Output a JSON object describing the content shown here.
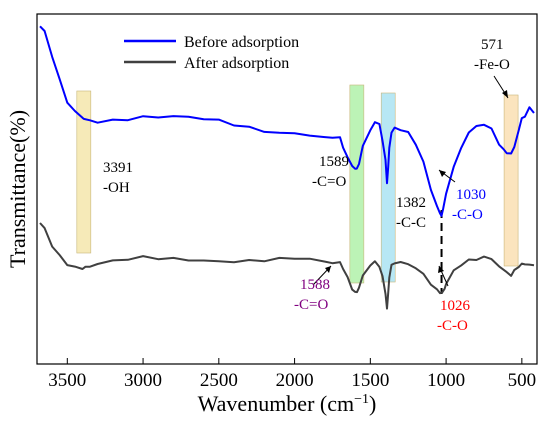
{
  "chart_data": {
    "type": "line",
    "xlabel": "Wavenumber (cm",
    "xlabel_sup": "−1",
    "xlabel_close": ")",
    "ylabel": "Transmittance(%)",
    "xlim": [
      3700,
      400
    ],
    "x_reversed": true,
    "x_ticks": [
      3500,
      3000,
      2500,
      2000,
      1500,
      1000,
      500
    ],
    "y_ticks_shown": false,
    "grid": false,
    "legend_position": "top-left",
    "series": [
      {
        "name": "Before adsorption",
        "color": "#0000ff",
        "x": [
          3680,
          3650,
          3600,
          3550,
          3500,
          3450,
          3400,
          3391,
          3350,
          3300,
          3200,
          3100,
          3000,
          2900,
          2800,
          2700,
          2600,
          2500,
          2400,
          2300,
          2200,
          2100,
          2000,
          1900,
          1800,
          1750,
          1700,
          1680,
          1650,
          1620,
          1600,
          1589,
          1575,
          1550,
          1500,
          1470,
          1440,
          1420,
          1400,
          1390,
          1382,
          1375,
          1360,
          1340,
          1300,
          1250,
          1200,
          1150,
          1100,
          1060,
          1040,
          1030,
          1020,
          1000,
          950,
          900,
          850,
          800,
          750,
          700,
          650,
          620,
          600,
          571,
          550,
          520,
          500,
          480,
          450,
          420
        ],
        "y": [
          96.5,
          95,
          88,
          81,
          75,
          72,
          70.5,
          70,
          69.5,
          69.2,
          69.5,
          70,
          70.5,
          70.6,
          70.8,
          70.5,
          70.2,
          69.5,
          68.5,
          67.5,
          66.5,
          66,
          65.8,
          65.5,
          64.5,
          65,
          64.5,
          62,
          59,
          56.5,
          56,
          55.5,
          57.5,
          62,
          67,
          69,
          68.5,
          64,
          58,
          52,
          56,
          62,
          66,
          67.5,
          67,
          66,
          63,
          57.5,
          50,
          45,
          43,
          42.5,
          44,
          49,
          56,
          62,
          66,
          68,
          68.5,
          67,
          63,
          61,
          60.5,
          60,
          62,
          67,
          70,
          71,
          73,
          72
        ]
      },
      {
        "name": "After adsorption",
        "color": "#404040",
        "x": [
          3680,
          3650,
          3600,
          3550,
          3500,
          3450,
          3400,
          3380,
          3350,
          3300,
          3200,
          3100,
          3000,
          2900,
          2800,
          2700,
          2600,
          2500,
          2400,
          2300,
          2200,
          2100,
          2000,
          1900,
          1800,
          1750,
          1700,
          1680,
          1650,
          1620,
          1600,
          1588,
          1575,
          1550,
          1500,
          1470,
          1440,
          1420,
          1400,
          1390,
          1382,
          1375,
          1360,
          1340,
          1300,
          1250,
          1200,
          1150,
          1100,
          1060,
          1040,
          1026,
          1010,
          1000,
          950,
          900,
          850,
          800,
          750,
          700,
          650,
          600,
          571,
          550,
          520,
          500,
          480,
          450,
          420
        ],
        "y": [
          40,
          39,
          33.5,
          31,
          28.5,
          27.5,
          27.5,
          27.5,
          28,
          28.5,
          29.5,
          30,
          30.5,
          30.3,
          30,
          29.8,
          29.5,
          29.3,
          29.3,
          29.4,
          29.7,
          30,
          30.3,
          30,
          29.2,
          29,
          28.8,
          27.5,
          24.5,
          21.5,
          20.5,
          20.5,
          22,
          25,
          28.5,
          29,
          28,
          25,
          20,
          16,
          20,
          25,
          28,
          29,
          29,
          28.5,
          27.5,
          25.5,
          23,
          21,
          20.5,
          20.3,
          21.5,
          23,
          26.5,
          28.5,
          29.5,
          30,
          30.5,
          30,
          28,
          26,
          25.5,
          26.5,
          28,
          28.5,
          28.5,
          28.5,
          28
        ]
      }
    ],
    "y_range": [
      0,
      100
    ],
    "highlights": [
      {
        "wavenumber": 3391,
        "color": "#f3e3a0"
      },
      {
        "wavenumber": 1589,
        "color": "#a6ef9e"
      },
      {
        "wavenumber": 1382,
        "color": "#9fdff0"
      },
      {
        "wavenumber": 571,
        "color": "#f9dba8"
      }
    ],
    "annotations": [
      {
        "id": "oh",
        "number": "3391",
        "group": "-OH",
        "color": "#000000"
      },
      {
        "id": "co-before",
        "number": "1589",
        "group": "-C=O",
        "color": "#000000"
      },
      {
        "id": "cc",
        "number": "1382",
        "group": "-C-C",
        "color": "#000000"
      },
      {
        "id": "co-before-1030",
        "number": "1030",
        "group": "-C-O",
        "color": "#0000ff"
      },
      {
        "id": "feo",
        "number": "571",
        "group": "-Fe-O",
        "color": "#000000"
      },
      {
        "id": "co-after",
        "number": "1588",
        "group": "-C=O",
        "color": "#800080"
      },
      {
        "id": "co-after-1026",
        "number": "1026",
        "group": "-C-O",
        "color": "#ff0000"
      }
    ]
  }
}
